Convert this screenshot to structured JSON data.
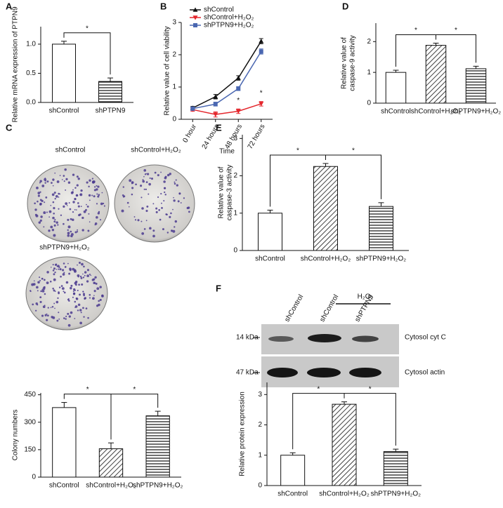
{
  "panels": [
    "A",
    "B",
    "C",
    "D",
    "E",
    "F"
  ],
  "chart_data": [
    {
      "type": "bar",
      "ylabel": "Relative mRNA expression of PTPN9",
      "categories": [
        "shControl",
        "shPTPN9"
      ],
      "values": [
        1.0,
        0.36
      ],
      "errors": [
        0.05,
        0.06
      ],
      "patterns": [
        "none",
        "horizontal"
      ],
      "ylim": [
        0,
        1.3
      ],
      "yticks": [
        {
          "value": 0,
          "label": "0.0"
        },
        {
          "value": 0.5,
          "label": "0.5"
        },
        {
          "value": 1,
          "label": "1.0"
        }
      ],
      "significance": [
        {
          "categories": [
            0,
            1
          ],
          "label": "*"
        }
      ]
    },
    {
      "type": "line",
      "ylabel": "Relative value of cell viability",
      "xlabel": "Time",
      "categories": [
        "0 hour",
        "24 hours",
        "48 hours",
        "72 hours"
      ],
      "series": [
        {
          "name": "shControl",
          "color": "#111111",
          "marker": "triangle-up",
          "values": [
            0.35,
            0.7,
            1.28,
            2.42
          ],
          "errors": [
            0.05,
            0.07,
            0.07,
            0.08
          ]
        },
        {
          "name": "shControl+H₂O₂",
          "color": "#e4262c",
          "marker": "triangle-down",
          "values": [
            0.3,
            0.15,
            0.25,
            0.48
          ],
          "errors": [
            0.05,
            0.08,
            0.07,
            0.07
          ]
        },
        {
          "name": "shPTPN9+H₂O₂",
          "color": "#4a67b1",
          "marker": "square",
          "values": [
            0.33,
            0.47,
            0.95,
            2.1
          ],
          "errors": [
            0.05,
            0.06,
            0.06,
            0.08
          ]
        }
      ],
      "ylim": [
        0,
        3
      ],
      "yticks": [
        0,
        1,
        2,
        3
      ],
      "annotations": [
        {
          "category": 2,
          "series": 1,
          "label": "*"
        },
        {
          "category": 3,
          "series": 1,
          "label": "*"
        }
      ]
    },
    {
      "type": "bar",
      "ylabel": [
        "Relative value of",
        "caspase-9 activity"
      ],
      "categories": [
        "shControl",
        "shControl+H₂O₂",
        "shPTPN9+H₂O₂"
      ],
      "values": [
        1.0,
        1.88,
        1.12
      ],
      "errors": [
        0.07,
        0.07,
        0.08
      ],
      "patterns": [
        "none",
        "diagonal",
        "horizontal"
      ],
      "ylim": [
        0,
        2.6
      ],
      "yticks": [
        0,
        1,
        2
      ],
      "significance": [
        {
          "categories": [
            0,
            1
          ],
          "label": "*"
        },
        {
          "categories": [
            1,
            2
          ],
          "label": "*"
        }
      ]
    },
    {
      "type": "bar",
      "ylabel": [
        "Relative value of",
        "caspase-3 activity"
      ],
      "categories": [
        "shControl",
        "shControl+H₂O₂",
        "shPTPN9+H₂O₂"
      ],
      "values": [
        1.0,
        2.25,
        1.18
      ],
      "errors": [
        0.08,
        0.08,
        0.1
      ],
      "patterns": [
        "none",
        "diagonal",
        "horizontal"
      ],
      "ylim": [
        0,
        3.1
      ],
      "yticks": [
        0,
        1,
        2,
        3
      ],
      "significance": [
        {
          "categories": [
            0,
            1
          ],
          "label": "*"
        },
        {
          "categories": [
            1,
            2
          ],
          "label": "*"
        }
      ]
    },
    {
      "type": "bar",
      "ylabel": "Colony numbers",
      "categories": [
        "shControl",
        "shControl+H₂O₂",
        "shPTPN9+H₂O₂"
      ],
      "values": [
        380,
        155,
        335
      ],
      "errors": [
        28,
        32,
        25
      ],
      "patterns": [
        "none",
        "diagonal",
        "horizontal"
      ],
      "ylim": [
        0,
        460
      ],
      "yticks": [
        0,
        150,
        300,
        450
      ],
      "significance": [
        {
          "categories": [
            0,
            1
          ],
          "label": "*"
        },
        {
          "categories": [
            1,
            2
          ],
          "label": "*"
        }
      ]
    },
    {
      "type": "bar",
      "ylabel": "Relative protein expression",
      "categories": [
        "shControl",
        "shControl+H₂O₂",
        "shPTPN9+H₂O₂"
      ],
      "values": [
        1.0,
        2.68,
        1.12
      ],
      "errors": [
        0.08,
        0.08,
        0.08
      ],
      "patterns": [
        "none",
        "diagonal",
        "horizontal"
      ],
      "ylim": [
        0,
        3.4
      ],
      "yticks": [
        0,
        1,
        2,
        3
      ],
      "significance": [
        {
          "categories": [
            0,
            1
          ],
          "label": "*"
        },
        {
          "categories": [
            1,
            2
          ],
          "label": "*"
        }
      ]
    }
  ],
  "colony_plates": {
    "labels": [
      "shControl",
      "shControl+H₂O₂",
      "shPTPN9+H₂O₂"
    ]
  },
  "western_blot": {
    "lanes": [
      "shControl",
      "shControl",
      "shPTPN9"
    ],
    "treatment": "H₂O₂",
    "rows": [
      {
        "marker": "14 kDa",
        "label": "Cytosol cyt C"
      },
      {
        "marker": "47 kDa",
        "label": "Cytosol actin"
      }
    ]
  }
}
